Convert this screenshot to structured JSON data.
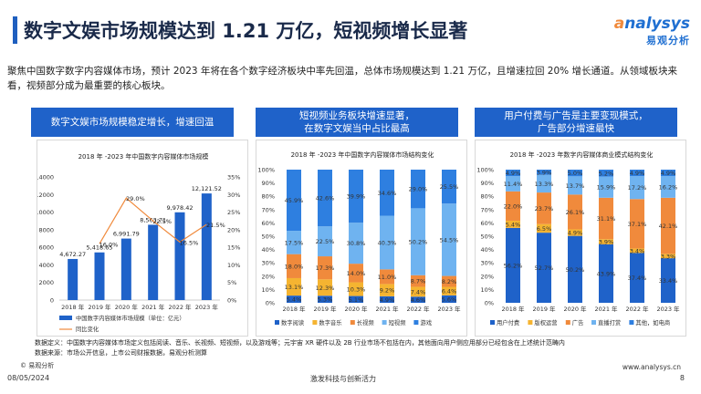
{
  "header": {
    "title": "数字文娱市场规模达到 1.21 万亿，短视频增长显著",
    "logo_text": "nalysys",
    "logo_cn": "易观分析"
  },
  "intro": "聚焦中国数字数字内容媒体市场，预计 2023 年将在各个数字经济板块中率先回温，总体市场规模达到 1.21 万亿，且增速拉回 20% 增长通道。从领域板块来看，视频部分成为最重要的核心板块。",
  "panels": [
    {
      "header": "数字文娱市场规模稳定增长，增速回温"
    },
    {
      "header_line1": "短视频业务板块增速显著，",
      "header_line2": "在数字文娱当中占比最高"
    },
    {
      "header_line1": "用户付费与广告是主要变现模式，",
      "header_line2": "广告部分增速最快"
    }
  ],
  "chart_data": [
    {
      "type": "bar",
      "title": "2018 年 -2023 年中国数字内容媒体市场规模",
      "categories": [
        "2018 年",
        "2019 年",
        "2020 年",
        "2021 年",
        "2022 年",
        "2023 年"
      ],
      "series": [
        {
          "name": "中国数字内容媒体市场规模（单位：亿元）",
          "values": [
            4672.27,
            5418.65,
            6991.79,
            8563.71,
            9978.42,
            12121.52
          ],
          "labels": [
            "4,672.27",
            "5,418.65",
            "6,991.79",
            "8,563.71",
            "9,978.42",
            "12,121.52"
          ]
        },
        {
          "name": "同比变化",
          "type": "line",
          "values": [
            null,
            16.0,
            29.0,
            22.5,
            16.5,
            21.5
          ],
          "labels": [
            "",
            "16.0%",
            "29.0%",
            "22.5%",
            "16.5%",
            "21.5%"
          ]
        }
      ],
      "y_left": {
        "ylim": [
          0,
          14000
        ],
        "ticks": [
          "0",
          "2000",
          "4000",
          "6000",
          "8000",
          "10000",
          "12000",
          "14000"
        ]
      },
      "y_right": {
        "ylim": [
          0,
          35
        ],
        "ticks": [
          "0%",
          "5%",
          "10%",
          "15%",
          "20%",
          "25%",
          "30%",
          "35%"
        ]
      },
      "colors": {
        "bar": "#1f62c9",
        "line": "#f08a3c"
      },
      "legend": "bottom"
    },
    {
      "type": "bar",
      "stacked": true,
      "title": "2018 年 -2023 年中国数字内容媒体市场结构变化",
      "categories": [
        "2018 年",
        "2019 年",
        "2020 年",
        "2021 年",
        "2022 年",
        "2023 年"
      ],
      "series": [
        {
          "name": "数字阅读",
          "color": "#1f62c9",
          "values": [
            5.4,
            5.3,
            5.1,
            4.9,
            4.6,
            5.6
          ],
          "labels": [
            "5.4%",
            "5.3%",
            "5.1%",
            "4.9%",
            "4.6%",
            "5.6%"
          ]
        },
        {
          "name": "数字音乐",
          "color": "#f5b431",
          "values": [
            13.1,
            12.3,
            10.3,
            9.2,
            7.4,
            6.4
          ],
          "labels": [
            "13.1%",
            "12.3%",
            "10.3%",
            "9.2%",
            "7.4%",
            "6.4%"
          ]
        },
        {
          "name": "长视频",
          "color": "#f08a3c",
          "values": [
            18.0,
            17.3,
            14.0,
            11.0,
            8.7,
            8.2
          ],
          "labels": [
            "18.0%",
            "17.3%",
            "14.0%",
            "11.0%",
            "8.7%",
            "8.2%"
          ]
        },
        {
          "name": "短视频",
          "color": "#6fb3f0",
          "values": [
            17.5,
            22.5,
            30.8,
            40.3,
            50.2,
            54.5
          ],
          "labels": [
            "17.5%",
            "22.5%",
            "30.8%",
            "40.3%",
            "50.2%",
            "54.5%"
          ]
        },
        {
          "name": "游戏",
          "color": "#2e7fe0",
          "values": [
            45.9,
            42.6,
            39.9,
            34.6,
            29.0,
            25.5
          ],
          "labels": [
            "45.9%",
            "42.6%",
            "39.9%",
            "34.6%",
            "29.0%",
            "25.5%"
          ]
        }
      ],
      "y_ticks": [
        "0%",
        "10%",
        "20%",
        "30%",
        "40%",
        "50%",
        "60%",
        "70%",
        "80%",
        "90%",
        "100%"
      ],
      "legend": "bottom"
    },
    {
      "type": "bar",
      "stacked": true,
      "title": "2018 年 -2023 年数字内容媒体商业模式结构变化",
      "categories": [
        "2018 年",
        "2019 年",
        "2020 年",
        "2021 年",
        "2022 年",
        "2023 年"
      ],
      "series": [
        {
          "name": "用户付费",
          "color": "#1f62c9",
          "values": [
            56.2,
            52.7,
            50.2,
            43.9,
            37.4,
            33.4
          ],
          "labels": [
            "56.2%",
            "52.7%",
            "50.2%",
            "43.9%",
            "37.4%",
            "33.4%"
          ]
        },
        {
          "name": "版权运营",
          "color": "#f5b431",
          "values": [
            5.4,
            6.5,
            4.9,
            3.9,
            3.4,
            3.3
          ],
          "labels": [
            "5.4%",
            "6.5%",
            "4.9%",
            "3.9%",
            "3.4%",
            "3.3%"
          ]
        },
        {
          "name": "广告",
          "color": "#f08a3c",
          "values": [
            22.0,
            23.7,
            26.1,
            31.1,
            37.1,
            42.1
          ],
          "labels": [
            "22.0%",
            "23.7%",
            "26.1%",
            "31.1%",
            "37.1%",
            "42.1%"
          ]
        },
        {
          "name": "直播打赏",
          "color": "#6fb3f0",
          "values": [
            11.4,
            13.3,
            13.7,
            15.9,
            17.2,
            16.2
          ],
          "labels": [
            "11.4%",
            "13.3%",
            "13.7%",
            "15.9%",
            "17.2%",
            "16.2%"
          ]
        },
        {
          "name": "其他，如电商",
          "color": "#2e7fe0",
          "values": [
            4.9,
            3.9,
            5.0,
            5.2,
            4.9,
            4.9
          ],
          "labels": [
            "4.9%",
            "3.9%",
            "5.0%",
            "5.2%",
            "4.9%",
            "4.9%"
          ]
        }
      ],
      "y_ticks": [
        "0%",
        "10%",
        "20%",
        "30%",
        "40%",
        "50%",
        "60%",
        "70%",
        "80%",
        "90%",
        "100%"
      ],
      "legend": "bottom"
    }
  ],
  "footer": {
    "definition": "数据定义：中国数字内容媒体市场定义包括阅读、音乐、长视频、短视频，以及游戏等；元宇宙 XR 硬件以及 2B 行业市场不包括在内，其他面向用户侧应用部分已经包含在上述统计范畴内",
    "source": "数据来源：市场公开信息，上市公司财报数据，易观分析测算",
    "copyright": "© 易观分析",
    "date": "08/05/2024",
    "tagline": "激发科技与创新活力",
    "url": "www.analysys.cn",
    "page": "8"
  }
}
